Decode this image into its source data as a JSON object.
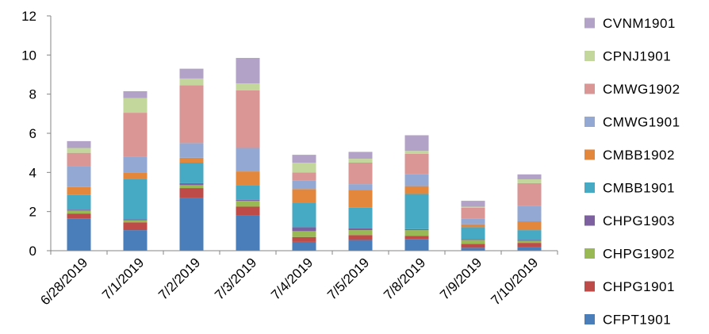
{
  "chart_data": {
    "type": "bar",
    "stacked": true,
    "categories": [
      "6/28/2019",
      "7/1/2019",
      "7/2/2019",
      "7/3/2019",
      "7/4/2019",
      "7/5/2019",
      "7/8/2019",
      "7/9/2019",
      "7/10/2019"
    ],
    "ylim": [
      0,
      12
    ],
    "yticks": [
      0,
      2,
      4,
      6,
      8,
      10,
      12
    ],
    "grid": false,
    "legend_position": "right",
    "series": [
      {
        "name": "CFPT1901",
        "color": "#4a7ebb",
        "values": [
          1.65,
          1.05,
          2.7,
          1.8,
          0.45,
          0.55,
          0.6,
          0.15,
          0.2
        ]
      },
      {
        "name": "CHPG1901",
        "color": "#be4b48",
        "values": [
          0.25,
          0.4,
          0.5,
          0.45,
          0.25,
          0.25,
          0.15,
          0.2,
          0.2
        ]
      },
      {
        "name": "CHPG1902",
        "color": "#98b954",
        "values": [
          0.15,
          0.1,
          0.15,
          0.3,
          0.3,
          0.25,
          0.3,
          0.2,
          0.1
        ]
      },
      {
        "name": "CHPG1903",
        "color": "#7d60a0",
        "values": [
          0.05,
          0.05,
          0.1,
          0.05,
          0.2,
          0.1,
          0.05,
          0.05,
          0.05
        ]
      },
      {
        "name": "CMBB1901",
        "color": "#46aac5",
        "values": [
          0.75,
          2.05,
          1.05,
          0.75,
          1.25,
          1.05,
          1.8,
          0.6,
          0.5
        ]
      },
      {
        "name": "CMBB1902",
        "color": "#e2873b",
        "values": [
          0.4,
          0.35,
          0.25,
          0.7,
          0.7,
          0.9,
          0.4,
          0.15,
          0.45
        ]
      },
      {
        "name": "CMWG1901",
        "color": "#93a9d3",
        "values": [
          1.05,
          0.8,
          0.75,
          1.2,
          0.45,
          0.3,
          0.6,
          0.3,
          0.8
        ]
      },
      {
        "name": "CMWG1902",
        "color": "#d99694",
        "values": [
          0.7,
          2.25,
          2.95,
          2.95,
          0.4,
          1.1,
          1.05,
          0.55,
          1.15
        ]
      },
      {
        "name": "CPNJ1901",
        "color": "#c3d69b",
        "values": [
          0.25,
          0.75,
          0.35,
          0.35,
          0.5,
          0.2,
          0.15,
          0.05,
          0.2
        ]
      },
      {
        "name": "CVNM1901",
        "color": "#b3a2c7",
        "values": [
          0.35,
          0.35,
          0.5,
          1.3,
          0.4,
          0.35,
          0.8,
          0.3,
          0.25
        ]
      }
    ]
  }
}
